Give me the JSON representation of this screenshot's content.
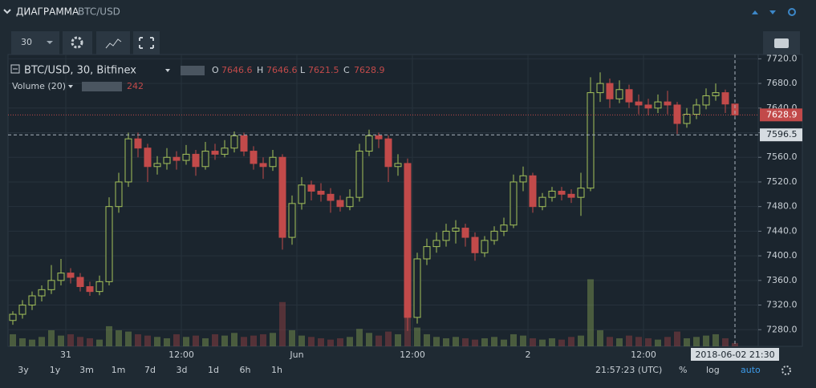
{
  "header": {
    "title": "ДИАГРАММА",
    "pair": "BTC/USD"
  },
  "toolbar": {
    "interval": "30"
  },
  "footer": {
    "ranges": [
      "3y",
      "1y",
      "3m",
      "1m",
      "7d",
      "3d",
      "1d",
      "6h",
      "1h"
    ],
    "clock": "21:57:23 (UTC)",
    "percent": "%",
    "log": "log",
    "auto": "auto"
  },
  "chart_data": {
    "type": "candlestick",
    "title": "BTC/USD, 30, Bitfinex",
    "ohlc_labels": [
      "O",
      "H",
      "L",
      "C"
    ],
    "volume_title": "Volume (20)",
    "up_color": "#a4c25b",
    "down_color": "#c24a4a",
    "ohlc": [
      [
        7295,
        7310,
        7288,
        7305
      ],
      [
        7305,
        7328,
        7298,
        7320
      ],
      [
        7320,
        7342,
        7312,
        7335
      ],
      [
        7335,
        7352,
        7326,
        7345
      ],
      [
        7345,
        7385,
        7338,
        7360
      ],
      [
        7360,
        7395,
        7352,
        7372
      ],
      [
        7372,
        7380,
        7355,
        7365
      ],
      [
        7365,
        7372,
        7342,
        7350
      ],
      [
        7350,
        7358,
        7335,
        7342
      ],
      [
        7342,
        7368,
        7336,
        7358
      ],
      [
        7358,
        7495,
        7352,
        7480
      ],
      [
        7480,
        7535,
        7470,
        7520
      ],
      [
        7520,
        7600,
        7512,
        7590
      ],
      [
        7590,
        7600,
        7560,
        7575
      ],
      [
        7575,
        7582,
        7520,
        7545
      ],
      [
        7545,
        7562,
        7532,
        7550
      ],
      [
        7550,
        7575,
        7540,
        7560
      ],
      [
        7560,
        7570,
        7540,
        7555
      ],
      [
        7555,
        7580,
        7548,
        7565
      ],
      [
        7565,
        7572,
        7530,
        7545
      ],
      [
        7545,
        7585,
        7540,
        7570
      ],
      [
        7570,
        7582,
        7556,
        7565
      ],
      [
        7565,
        7588,
        7560,
        7575
      ],
      [
        7575,
        7602,
        7568,
        7595
      ],
      [
        7595,
        7600,
        7562,
        7570
      ],
      [
        7570,
        7578,
        7540,
        7550
      ],
      [
        7550,
        7560,
        7525,
        7545
      ],
      [
        7545,
        7572,
        7538,
        7560
      ],
      [
        7560,
        7565,
        7410,
        7430
      ],
      [
        7430,
        7498,
        7418,
        7485
      ],
      [
        7485,
        7528,
        7475,
        7515
      ],
      [
        7515,
        7522,
        7490,
        7505
      ],
      [
        7505,
        7518,
        7488,
        7500
      ],
      [
        7500,
        7510,
        7470,
        7490
      ],
      [
        7490,
        7498,
        7472,
        7480
      ],
      [
        7480,
        7508,
        7474,
        7495
      ],
      [
        7495,
        7582,
        7488,
        7570
      ],
      [
        7570,
        7605,
        7562,
        7595
      ],
      [
        7595,
        7600,
        7575,
        7590
      ],
      [
        7590,
        7596,
        7520,
        7545
      ],
      [
        7545,
        7565,
        7530,
        7550
      ],
      [
        7550,
        7558,
        7278,
        7300
      ],
      [
        7300,
        7405,
        7290,
        7395
      ],
      [
        7395,
        7428,
        7385,
        7415
      ],
      [
        7415,
        7438,
        7405,
        7425
      ],
      [
        7425,
        7452,
        7415,
        7440
      ],
      [
        7440,
        7458,
        7420,
        7445
      ],
      [
        7445,
        7452,
        7415,
        7430
      ],
      [
        7430,
        7438,
        7392,
        7405
      ],
      [
        7405,
        7432,
        7398,
        7425
      ],
      [
        7425,
        7448,
        7418,
        7440
      ],
      [
        7440,
        7462,
        7432,
        7450
      ],
      [
        7450,
        7532,
        7445,
        7520
      ],
      [
        7520,
        7545,
        7505,
        7530
      ],
      [
        7530,
        7535,
        7470,
        7480
      ],
      [
        7480,
        7502,
        7474,
        7495
      ],
      [
        7495,
        7512,
        7488,
        7505
      ],
      [
        7505,
        7512,
        7490,
        7500
      ],
      [
        7500,
        7508,
        7486,
        7495
      ],
      [
        7495,
        7535,
        7465,
        7510
      ],
      [
        7510,
        7690,
        7505,
        7665
      ],
      [
        7665,
        7698,
        7650,
        7680
      ],
      [
        7680,
        7688,
        7640,
        7655
      ],
      [
        7655,
        7685,
        7648,
        7670
      ],
      [
        7670,
        7678,
        7640,
        7650
      ],
      [
        7650,
        7662,
        7630,
        7645
      ],
      [
        7645,
        7655,
        7628,
        7640
      ],
      [
        7640,
        7662,
        7632,
        7650
      ],
      [
        7650,
        7668,
        7630,
        7645
      ],
      [
        7645,
        7650,
        7598,
        7615
      ],
      [
        7615,
        7640,
        7608,
        7630
      ],
      [
        7630,
        7655,
        7622,
        7645
      ],
      [
        7645,
        7672,
        7638,
        7660
      ],
      [
        7660,
        7680,
        7652,
        7665
      ],
      [
        7665,
        7670,
        7632,
        7646.6
      ],
      [
        7646.6,
        7646.6,
        7621.5,
        7628.9
      ]
    ],
    "volume": [
      900,
      600,
      500,
      700,
      1200,
      800,
      900,
      700,
      600,
      500,
      1500,
      1200,
      1100,
      900,
      800,
      700,
      600,
      900,
      700,
      800,
      600,
      900,
      800,
      1000,
      700,
      800,
      900,
      1000,
      3300,
      1200,
      800,
      700,
      600,
      500,
      600,
      700,
      1300,
      1000,
      800,
      1100,
      900,
      3700,
      1400,
      900,
      700,
      600,
      700,
      600,
      500,
      600,
      700,
      500,
      900,
      800,
      600,
      500,
      600,
      500,
      700,
      800,
      5000,
      1200,
      700,
      600,
      800,
      700,
      600,
      500,
      700,
      1100,
      600,
      700,
      800,
      900,
      600,
      242
    ],
    "volume_lim": [
      0,
      5500
    ],
    "ylim": [
      7253,
      7727
    ],
    "yticks": [
      {
        "value": 7280,
        "label": "7280.0"
      },
      {
        "value": 7320,
        "label": "7320.0"
      },
      {
        "value": 7360,
        "label": "7360.0"
      },
      {
        "value": 7400,
        "label": "7400.0"
      },
      {
        "value": 7440,
        "label": "7440.0"
      },
      {
        "value": 7480,
        "label": "7480.0"
      },
      {
        "value": 7520,
        "label": "7520.0"
      },
      {
        "value": 7560,
        "label": "7560.0"
      },
      {
        "value": 7600,
        "label": "7600.0"
      },
      {
        "value": 7640,
        "label": "7640.0"
      },
      {
        "value": 7680,
        "label": "7680.0"
      },
      {
        "value": 7720,
        "label": "7720.0"
      }
    ],
    "xlim": [
      0,
      78
    ],
    "xticks": [
      {
        "value": 6,
        "label": "31"
      },
      {
        "value": 18,
        "label": "12:00"
      },
      {
        "value": 30,
        "label": "Jun"
      },
      {
        "value": 42,
        "label": "12:00"
      },
      {
        "value": 54,
        "label": "2"
      },
      {
        "value": 66,
        "label": "12:00"
      }
    ],
    "crosshair": {
      "price": 7596.5,
      "time": "2018-06-02 21:30"
    },
    "grid": true
  }
}
